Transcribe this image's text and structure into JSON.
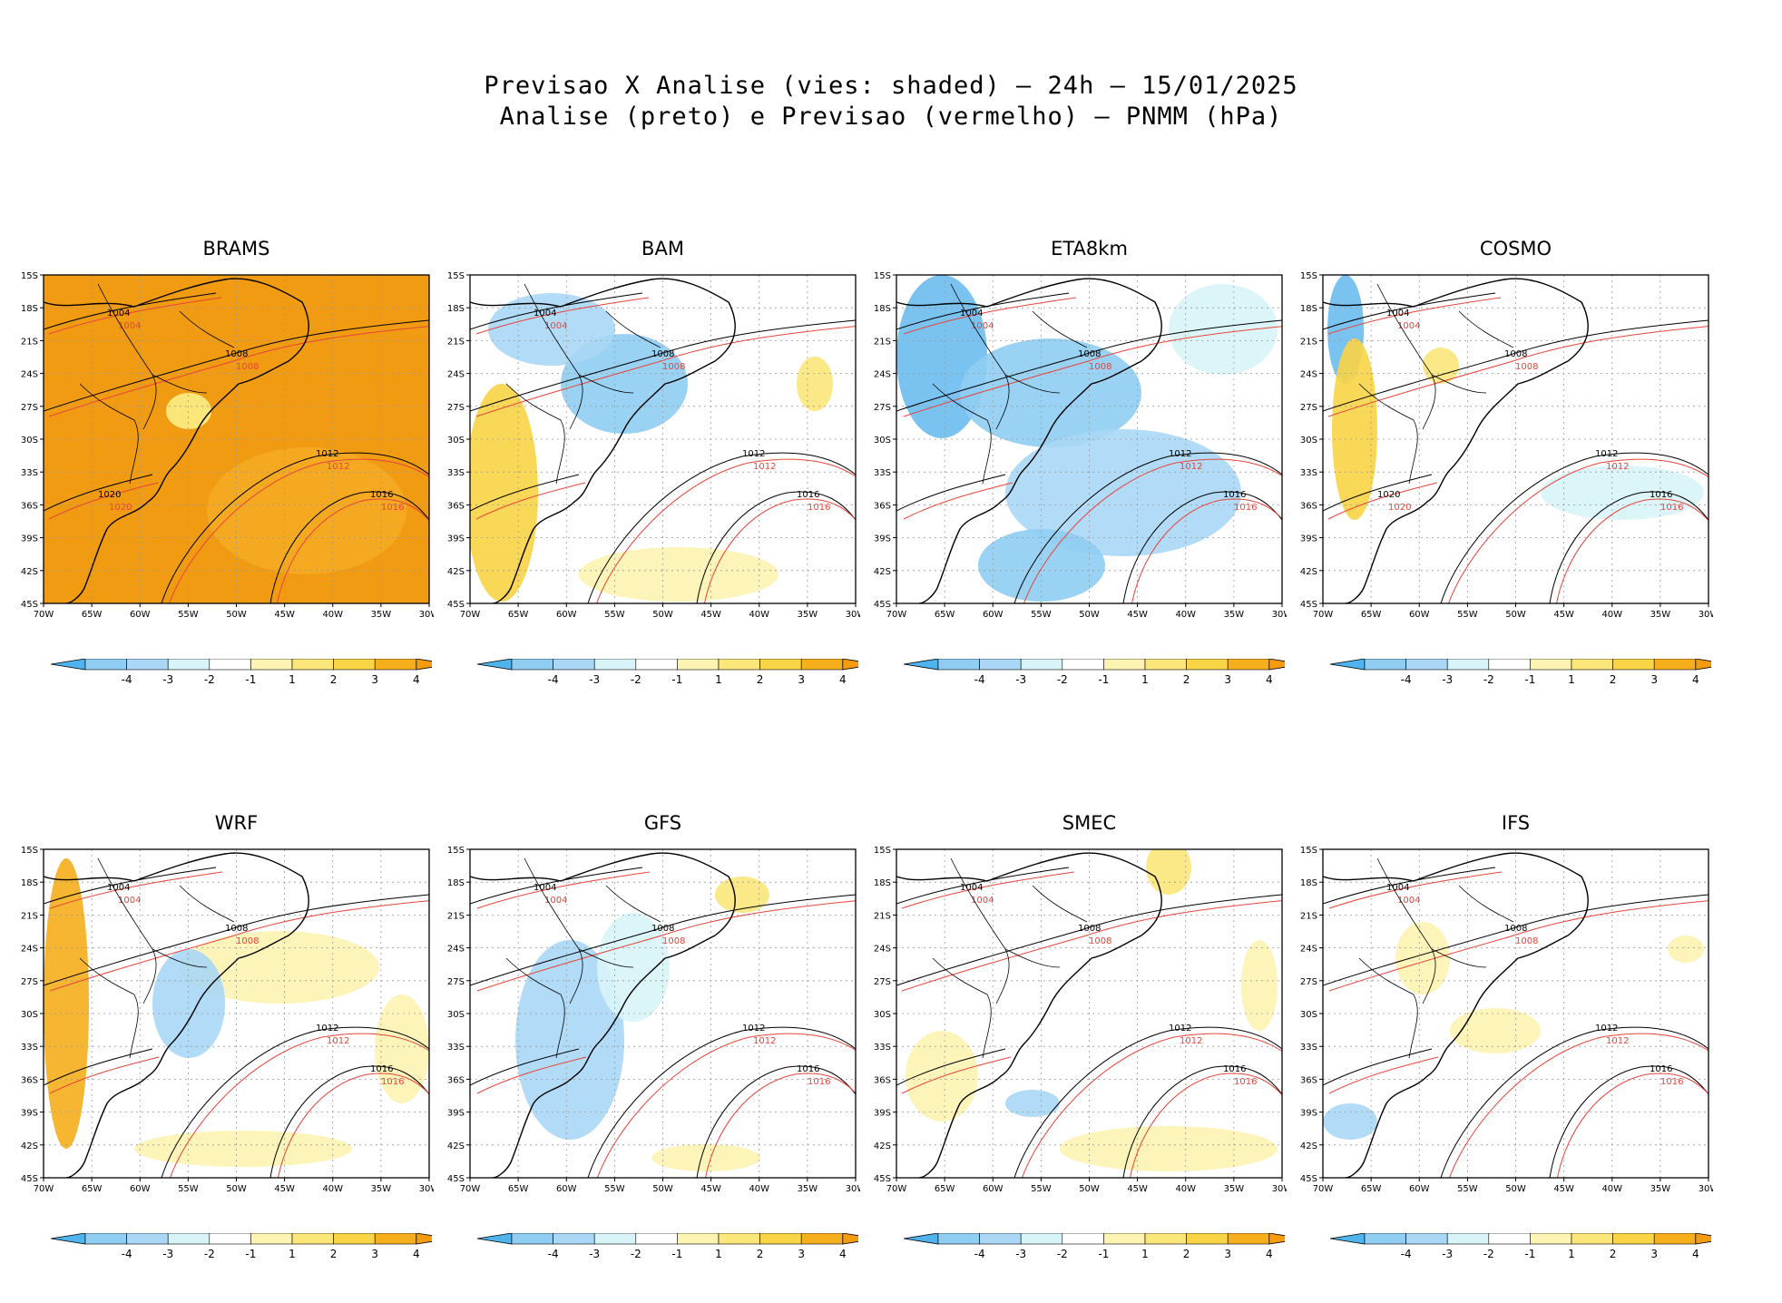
{
  "title": {
    "line1": "Previsao X Analise (vies: shaded) — 24h — 15/01/2025",
    "line2": "Analise (preto) e Previsao (vermelho) — PNMM (hPa)"
  },
  "lat_labels": [
    "15S",
    "18S",
    "21S",
    "24S",
    "27S",
    "30S",
    "33S",
    "36S",
    "39S",
    "42S",
    "45S"
  ],
  "lon_labels": [
    "70W",
    "65W",
    "60W",
    "55W",
    "50W",
    "45W",
    "40W",
    "35W",
    "30W"
  ],
  "colorbar": {
    "labels": [
      "-4",
      "-3",
      "-2",
      "-1",
      "1",
      "2",
      "3",
      "4"
    ],
    "colors": [
      "#4fb3ee",
      "#8fcdf3",
      "#a9d7f5",
      "#d8f4f8",
      "#ffffff",
      "#fdf3b3",
      "#fbe67a",
      "#f9d445",
      "#f5ae1c",
      "#f59b0d"
    ]
  },
  "colors": {
    "analysis_contour": "#000000",
    "forecast_contour": "#e8443a",
    "positive_bias": "#f9c84a",
    "strong_positive_bias": "#f19b12",
    "negative_bias": "#6cbdf0",
    "grid": "#999999"
  },
  "panels": [
    {
      "name": "BRAMS",
      "contours": [
        "1004",
        "1008",
        "1012",
        "1016",
        "1020"
      ]
    },
    {
      "name": "BAM",
      "contours": [
        "1004",
        "1008",
        "1012",
        "1016"
      ]
    },
    {
      "name": "ETA8km",
      "contours": [
        "1004",
        "1008",
        "1012",
        "1016"
      ]
    },
    {
      "name": "COSMO",
      "contours": [
        "1004",
        "1008",
        "1012",
        "1016",
        "1020"
      ]
    },
    {
      "name": "WRF",
      "contours": [
        "1004",
        "1008",
        "1012",
        "1016"
      ]
    },
    {
      "name": "GFS",
      "contours": [
        "1004",
        "1008",
        "1012",
        "1016"
      ]
    },
    {
      "name": "SMEC",
      "contours": [
        "1004",
        "1008",
        "1012",
        "1016"
      ]
    },
    {
      "name": "IFS",
      "contours": [
        "1004",
        "1008",
        "1012",
        "1016"
      ]
    }
  ]
}
